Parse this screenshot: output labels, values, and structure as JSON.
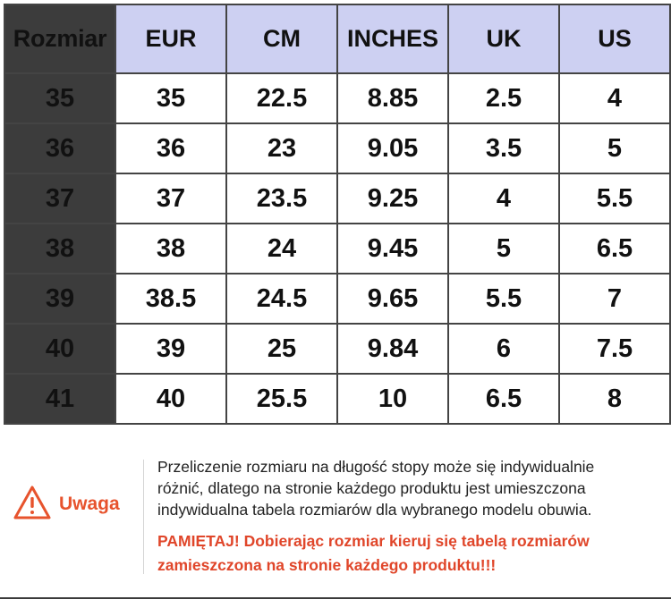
{
  "table": {
    "corner_label": "Rozmiar",
    "headers": [
      "EUR",
      "CM",
      "INCHES",
      "UK",
      "US"
    ],
    "rows": [
      {
        "size": "35",
        "eur": "35",
        "cm": "22.5",
        "inches": "8.85",
        "uk": "2.5",
        "us": "4"
      },
      {
        "size": "36",
        "eur": "36",
        "cm": "23",
        "inches": "9.05",
        "uk": "3.5",
        "us": "5"
      },
      {
        "size": "37",
        "eur": "37",
        "cm": "23.5",
        "inches": "9.25",
        "uk": "4",
        "us": "5.5"
      },
      {
        "size": "38",
        "eur": "38",
        "cm": "24",
        "inches": "9.45",
        "uk": "5",
        "us": "6.5"
      },
      {
        "size": "39",
        "eur": "38.5",
        "cm": "24.5",
        "inches": "9.65",
        "uk": "5.5",
        "us": "7"
      },
      {
        "size": "40",
        "eur": "39",
        "cm": "25",
        "inches": "9.84",
        "uk": "6",
        "us": "7.5"
      },
      {
        "size": "41",
        "eur": "40",
        "cm": "25.5",
        "inches": "10",
        "uk": "6.5",
        "us": "8"
      }
    ]
  },
  "warning": {
    "label": "Uwaga",
    "icon": "warning-triangle-icon",
    "note_lines": [
      "Przeliczenie rozmiaru na długość stopy może się indywidualnie",
      "różnić, dlatego na stronie każdego produktu jest umieszczona",
      "indywidualna tabela rozmiarów dla wybranego modelu obuwia."
    ],
    "reminder_lines": [
      "PAMIĘTAJ! Dobierając rozmiar kieruj się tabelą rozmiarów",
      "zamieszczona na stronie każdego produktu!!!"
    ]
  },
  "colors": {
    "header_fill": "#cdd0f2",
    "row_header_fill": "#3c3c3c",
    "warning_accent": "#e7532d",
    "reminder_text": "#e0462a"
  }
}
